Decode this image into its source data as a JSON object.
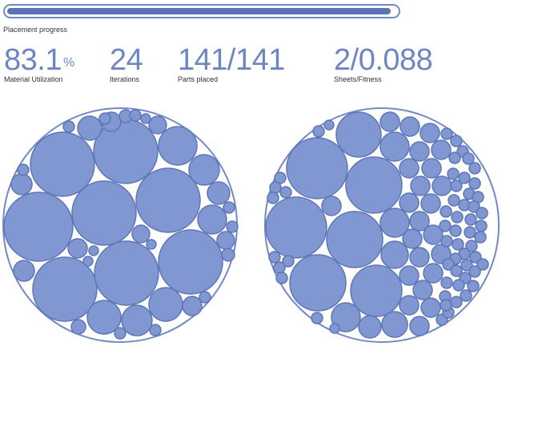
{
  "progress": {
    "label": "Placement progress",
    "fraction": 0.985,
    "color": "#5b74b7"
  },
  "stats": [
    {
      "value": "83.1",
      "unit": "%",
      "label": "Material Utilization"
    },
    {
      "value": "24",
      "unit": "",
      "label": "Iterations"
    },
    {
      "value": "141/141",
      "unit": "",
      "label": "Parts placed"
    },
    {
      "value": "2/0.088",
      "unit": "",
      "label": "Sheets/Fitness"
    }
  ],
  "colors": {
    "accent": "#6d86c2",
    "part_fill": "#8097d2",
    "part_stroke": "#5e76b6",
    "sheet_stroke": "#7289c4"
  }
}
